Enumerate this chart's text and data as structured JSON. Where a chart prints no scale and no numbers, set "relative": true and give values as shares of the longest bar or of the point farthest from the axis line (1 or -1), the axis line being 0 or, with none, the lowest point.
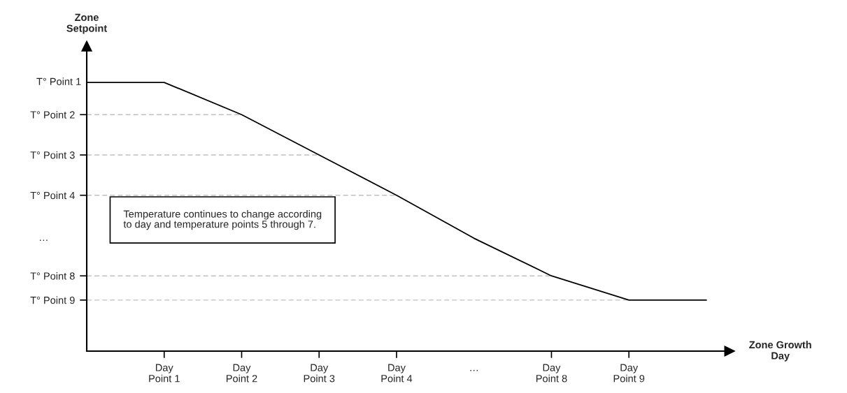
{
  "chart_data": {
    "type": "line",
    "relative": true,
    "xlabel": "Zone Growth\nDay",
    "ylabel": "Zone\nSetpoint",
    "categories": [
      null,
      "Day\nPoint 1",
      "Day\nPoint 2",
      "Day\nPoint 3",
      "Day\nPoint 4",
      "…",
      "Day\nPoint 8",
      "Day\nPoint 9",
      null
    ],
    "series": [
      {
        "color": "#000000",
        "values": [
          1,
          1,
          0.88,
          0.73,
          0.58,
          0.42,
          0.28,
          0.19,
          0.19
        ]
      }
    ],
    "ref_lines": [
      {
        "axis": "y",
        "value": 0.88,
        "label": "T° Point 2",
        "color": "#c0c0c0",
        "line_style": "dashed"
      },
      {
        "axis": "y",
        "value": 0.73,
        "label": "T° Point 3",
        "color": "#c0c0c0",
        "line_style": "dashed"
      },
      {
        "axis": "y",
        "value": 0.58,
        "label": "T° Point 4",
        "color": "#c0c0c0",
        "line_style": "dashed"
      },
      {
        "axis": "y",
        "value": 0.28,
        "label": "T° Point 8",
        "color": "#c0c0c0",
        "line_style": "dashed"
      },
      {
        "axis": "y",
        "value": 0.19,
        "label": "T° Point 9",
        "color": "#c0c0c0",
        "line_style": "dashed"
      }
    ],
    "annotations": [
      "T° Point 1",
      "…",
      "Temperature continues to change according\nto day and temperature points 5 through 7."
    ],
    "grid": false,
    "legend": false,
    "marker": "none",
    "line_style": "solid"
  }
}
